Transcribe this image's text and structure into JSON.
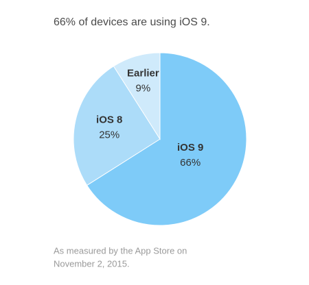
{
  "chart_data": {
    "type": "pie",
    "title": "66% of devices are using iOS 9.",
    "categories": [
      "iOS 9",
      "iOS 8",
      "Earlier"
    ],
    "values": [
      66,
      25,
      9
    ],
    "value_labels": [
      "66%",
      "25%",
      "9%"
    ],
    "colors": [
      "#7ecbf8",
      "#acdcf9",
      "#cfeafb"
    ],
    "footnote": [
      "As measured by the App Store on",
      "November 2, 2015."
    ]
  }
}
